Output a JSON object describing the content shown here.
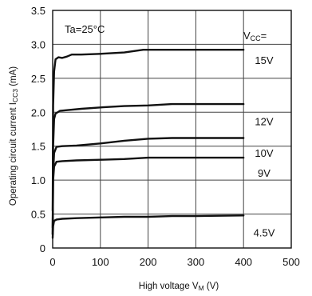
{
  "chart_data": {
    "type": "line",
    "xlabel_main": "High voltage V",
    "xlabel_sub": "M",
    "xlabel_unit": " (V)",
    "ylabel_main": "Operating circuit current I",
    "ylabel_sub": "CC3",
    "ylabel_unit": " (mA)",
    "annotation": "Ta=25°C",
    "legend_title_main": "V",
    "legend_title_sub": "CC",
    "legend_title_suffix": "=",
    "xlim": [
      0,
      500
    ],
    "ylim": [
      0,
      3.5
    ],
    "x_ticks": [
      0,
      100,
      200,
      300,
      400,
      500
    ],
    "x_tick_labels": [
      "0",
      "100",
      "200",
      "300",
      "400",
      "500"
    ],
    "y_ticks": [
      0,
      0.5,
      1.0,
      1.5,
      2.0,
      2.5,
      3.0,
      3.5
    ],
    "y_tick_labels": [
      "0",
      "0.5",
      "1.0",
      "1.5",
      "2.0",
      "2.5",
      "3.0",
      "3.5"
    ],
    "grid": true,
    "series": [
      {
        "name": "15V",
        "x": [
          0,
          1,
          3,
          6,
          12,
          20,
          30,
          40,
          60,
          100,
          150,
          190,
          250,
          300,
          400
        ],
        "y": [
          0.55,
          2.1,
          2.6,
          2.78,
          2.81,
          2.8,
          2.82,
          2.85,
          2.85,
          2.86,
          2.88,
          2.92,
          2.92,
          2.92,
          2.92
        ]
      },
      {
        "name": "12V",
        "x": [
          0,
          1,
          3,
          6,
          15,
          30,
          60,
          100,
          150,
          200,
          250,
          300,
          350,
          400
        ],
        "y": [
          0.3,
          1.5,
          1.9,
          1.98,
          2.02,
          2.03,
          2.05,
          2.07,
          2.09,
          2.1,
          2.12,
          2.12,
          2.12,
          2.12
        ]
      },
      {
        "name": "10V",
        "x": [
          0,
          1,
          3,
          8,
          20,
          50,
          100,
          150,
          200,
          250,
          300,
          400
        ],
        "y": [
          0.2,
          1.1,
          1.4,
          1.49,
          1.5,
          1.51,
          1.54,
          1.58,
          1.61,
          1.62,
          1.62,
          1.62
        ]
      },
      {
        "name": "9V",
        "x": [
          0,
          1,
          3,
          8,
          20,
          50,
          100,
          150,
          200,
          250,
          300,
          400
        ],
        "y": [
          0.2,
          1.0,
          1.2,
          1.27,
          1.28,
          1.29,
          1.3,
          1.31,
          1.33,
          1.33,
          1.33,
          1.33
        ]
      },
      {
        "name": "4.5V",
        "x": [
          0,
          1,
          3,
          8,
          20,
          50,
          100,
          150,
          200,
          250,
          300,
          400
        ],
        "y": [
          0.15,
          0.32,
          0.4,
          0.42,
          0.43,
          0.44,
          0.45,
          0.46,
          0.46,
          0.47,
          0.47,
          0.48
        ]
      }
    ]
  }
}
